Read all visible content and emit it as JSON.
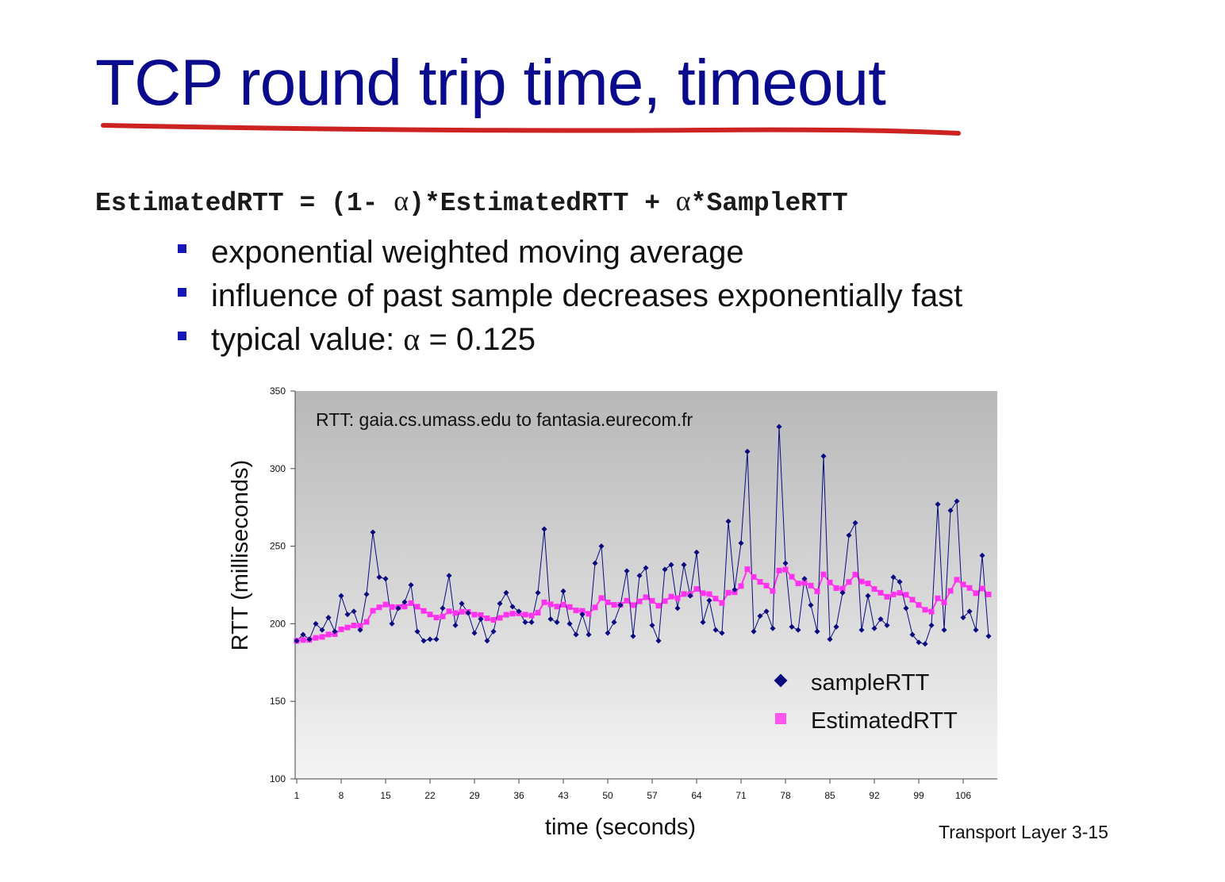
{
  "slide": {
    "title": "TCP round trip time, timeout",
    "formula": {
      "part1": "EstimatedRTT = (1- ",
      "alpha": "α",
      "part2": ")*EstimatedRTT + ",
      "part3": "*SampleRTT"
    },
    "bullets": [
      "exponential weighted moving average",
      "influence of past sample decreases exponentially fast",
      "typical value:"
    ],
    "typical_value_alpha": "α",
    "typical_value_rest": " = 0.125",
    "footer": "Transport Layer 3-15",
    "colors": {
      "title": "#0a0a8c",
      "underline": "#cc2222",
      "bullet": "#1717b8"
    }
  },
  "chart_data": {
    "type": "line",
    "annotation": "RTT: gaia.cs.umass.edu to fantasia.eurecom.fr",
    "xlabel": "time (seconds)",
    "ylabel": "RTT (milliseconds)",
    "xlim": [
      1,
      111
    ],
    "ylim": [
      100,
      350
    ],
    "yticks": [
      100,
      150,
      200,
      250,
      300,
      350
    ],
    "xticks": [
      1,
      8,
      15,
      22,
      29,
      36,
      43,
      50,
      57,
      64,
      71,
      78,
      85,
      92,
      99,
      106
    ],
    "legend_position": "bottom-right",
    "series": [
      {
        "name": "sampleRTT",
        "color": "#0a0a80",
        "marker": "diamond",
        "values": [
          189,
          193,
          190,
          200,
          196,
          204,
          195,
          218,
          206,
          208,
          196,
          219,
          259,
          230,
          229,
          200,
          210,
          214,
          225,
          195,
          189,
          190,
          190,
          210,
          231,
          199,
          213,
          207,
          194,
          203,
          189,
          195,
          213,
          220,
          211,
          208,
          201,
          201,
          220,
          261,
          203,
          201,
          221,
          200,
          193,
          206,
          193,
          239,
          250,
          194,
          201,
          212,
          234,
          192,
          231,
          236,
          199,
          189,
          235,
          238,
          210,
          238,
          218,
          246,
          201,
          215,
          196,
          194,
          266,
          222,
          252,
          311,
          195,
          205,
          208,
          197,
          327,
          239,
          198,
          196,
          229,
          212,
          195,
          308,
          190,
          198,
          220,
          257,
          265,
          196,
          218,
          197,
          203,
          199,
          230,
          227,
          210,
          193,
          188,
          187,
          199,
          277,
          196,
          273,
          279,
          204,
          208,
          196,
          244,
          192
        ]
      },
      {
        "name": "EstimatedRTT",
        "color": "#ff33ee",
        "marker": "square",
        "values": [
          189,
          189.5,
          189.6,
          190.9,
          191.5,
          193.1,
          193.3,
          196.4,
          197.6,
          198.9,
          198.6,
          201.2,
          208.4,
          210.6,
          212.4,
          210.8,
          210.7,
          211.1,
          213.3,
          211.0,
          208.3,
          206.0,
          204.0,
          204.7,
          208.0,
          206.9,
          207.7,
          207.6,
          205.9,
          205.6,
          203.5,
          202.5,
          203.8,
          205.8,
          206.5,
          206.7,
          205.9,
          205.3,
          207.1,
          213.8,
          212.5,
          211.1,
          212.3,
          210.8,
          208.6,
          208.3,
          206.4,
          210.5,
          216.6,
          213.8,
          212.2,
          212.2,
          214.9,
          212.0,
          214.4,
          217.1,
          214.8,
          211.6,
          214.6,
          217.5,
          216.5,
          219.2,
          219.0,
          222.4,
          219.7,
          219.1,
          216.2,
          213.4,
          220.0,
          220.3,
          224.3,
          235.2,
          230.2,
          227.0,
          224.6,
          221.1,
          234.3,
          234.9,
          230.3,
          226.0,
          226.4,
          224.6,
          220.9,
          231.8,
          226.6,
          223.0,
          222.6,
          226.9,
          231.7,
          227.2,
          226.0,
          222.4,
          220.0,
          217.4,
          218.9,
          219.9,
          218.7,
          215.5,
          212.1,
          209.0,
          207.8,
          216.4,
          213.8,
          221.2,
          228.4,
          225.3,
          223.1,
          219.7,
          222.7,
          218.9
        ]
      }
    ]
  }
}
